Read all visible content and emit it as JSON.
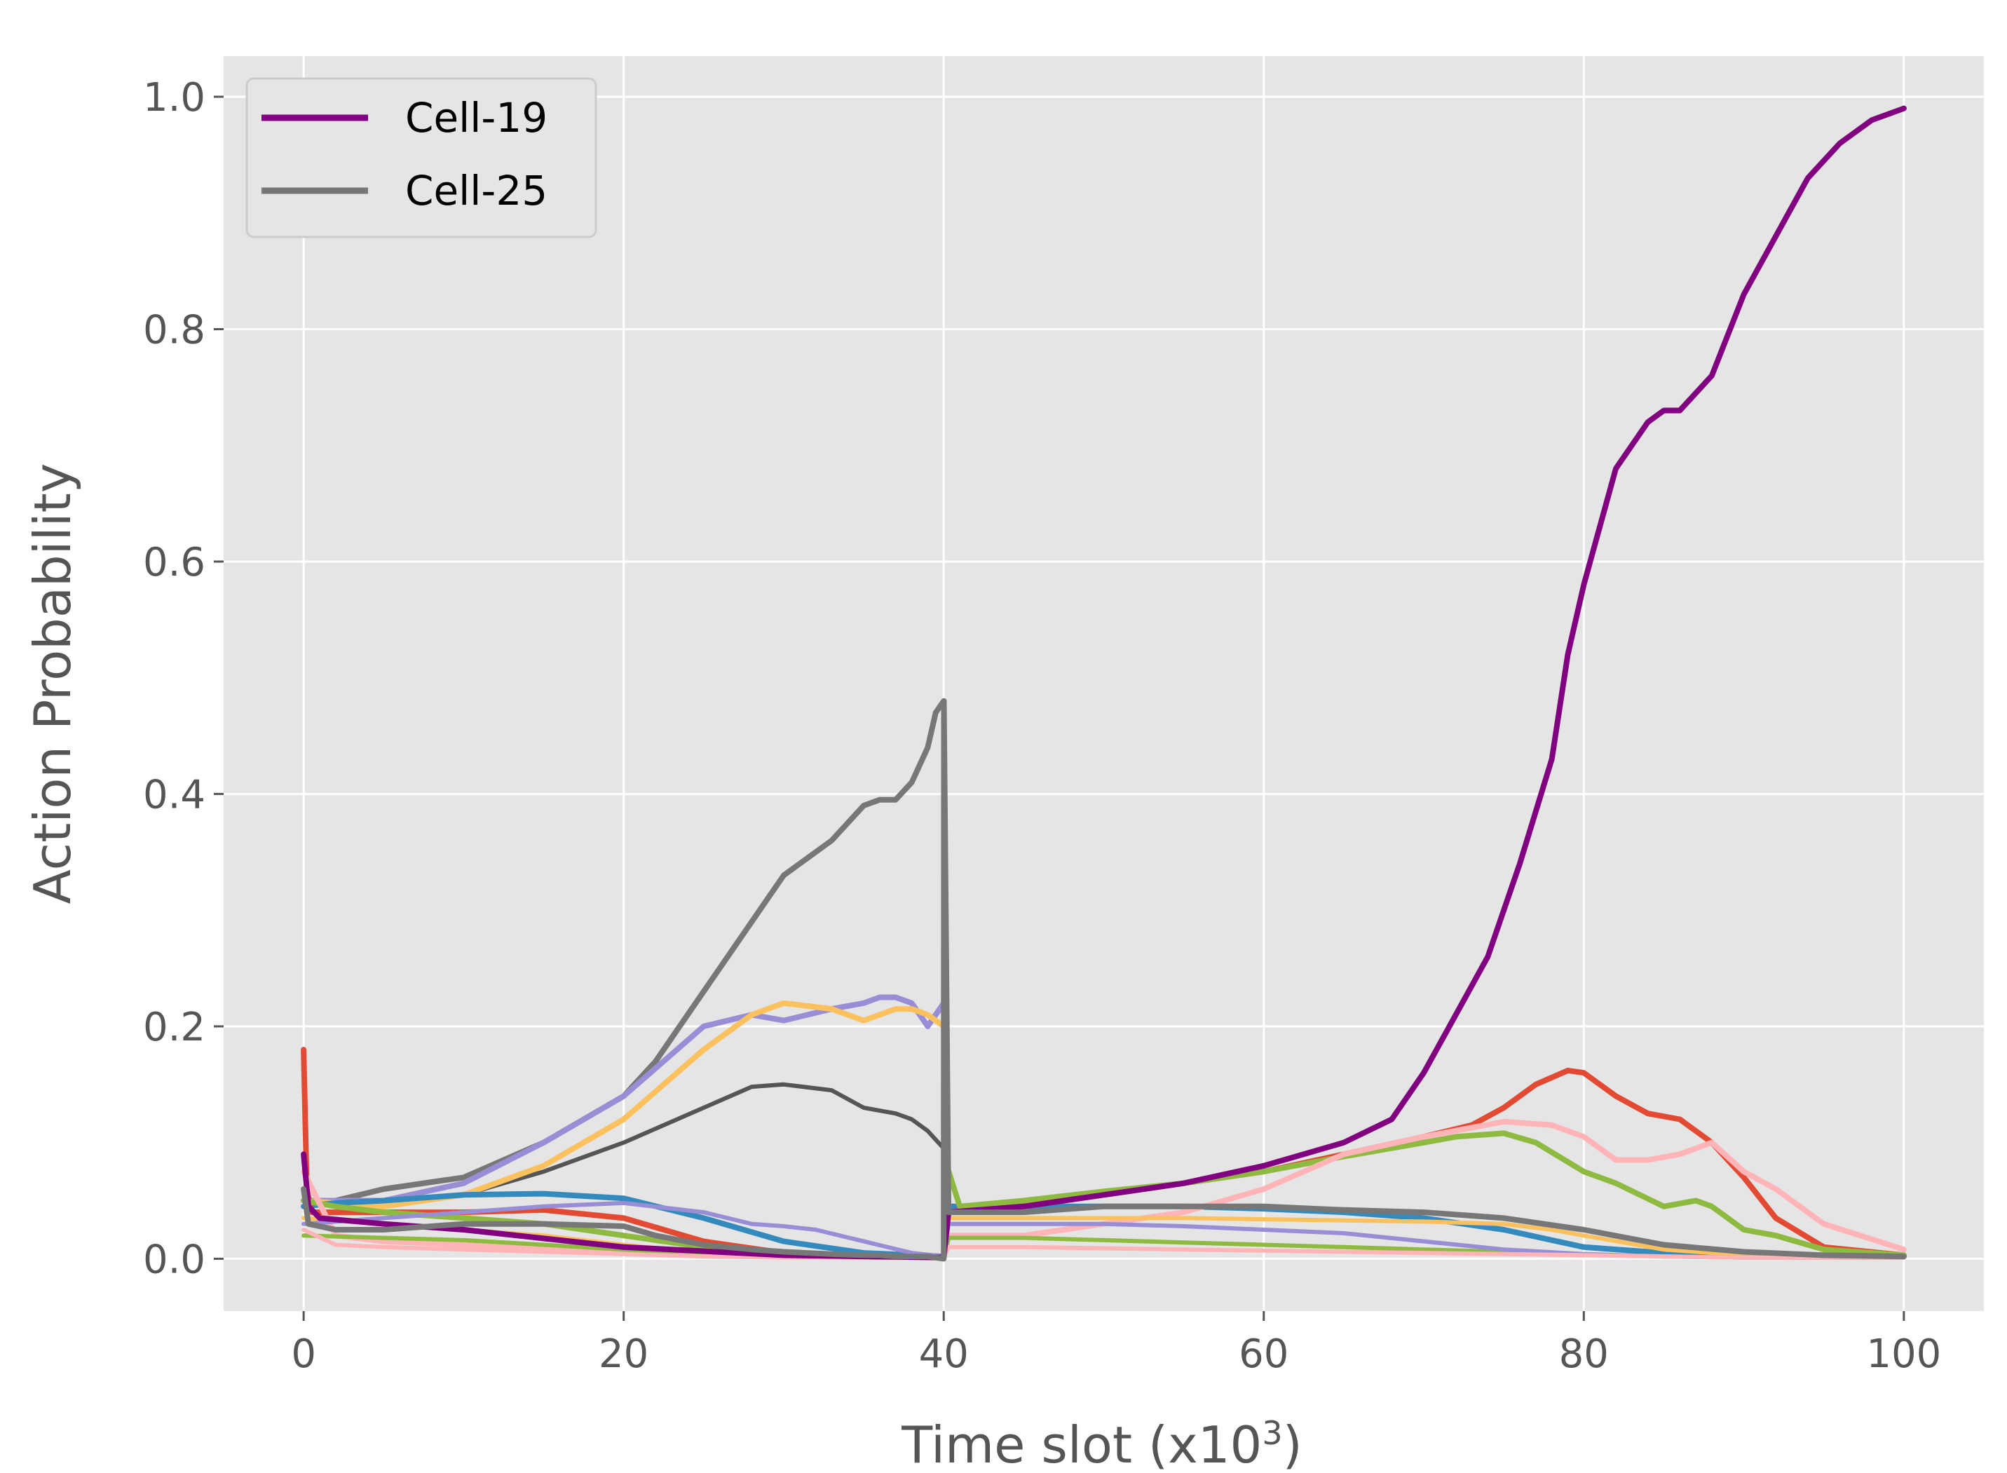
{
  "chart_data": {
    "type": "line",
    "xlabel": "Time slot (x10",
    "xlabel_sup": "3",
    "xlabel_end": ")",
    "ylabel": "Action Probability",
    "xlim": [
      -5,
      105
    ],
    "ylim": [
      -0.045,
      1.035
    ],
    "xticks": [
      0,
      20,
      40,
      60,
      80,
      100
    ],
    "yticks": [
      0.0,
      0.2,
      0.4,
      0.6,
      0.8,
      1.0
    ],
    "xtick_labels": [
      "0",
      "20",
      "40",
      "60",
      "80",
      "100"
    ],
    "ytick_labels": [
      "0.0",
      "0.2",
      "0.4",
      "0.6",
      "0.8",
      "1.0"
    ],
    "grid": true,
    "legend_position": "top-left",
    "background": "#e5e5e5",
    "grid_color": "#ffffff",
    "legend": [
      {
        "name": "Cell-19",
        "color": "#800080"
      },
      {
        "name": "Cell-25",
        "color": "#777777"
      }
    ],
    "series": [
      {
        "name": "Cell-19",
        "color": "#800080",
        "width": 8,
        "legend": true,
        "x": [
          0,
          0.3,
          1,
          5,
          10,
          20,
          30,
          40,
          40.3,
          45,
          50,
          55,
          60,
          65,
          68,
          70,
          72,
          74,
          76,
          78,
          79,
          80,
          82,
          84,
          85,
          86,
          88,
          90,
          92,
          94,
          96,
          98,
          100
        ],
        "y": [
          0.09,
          0.045,
          0.035,
          0.03,
          0.025,
          0.01,
          0.003,
          0.001,
          0.04,
          0.045,
          0.055,
          0.065,
          0.08,
          0.1,
          0.12,
          0.16,
          0.21,
          0.26,
          0.34,
          0.43,
          0.52,
          0.58,
          0.68,
          0.72,
          0.73,
          0.73,
          0.76,
          0.83,
          0.88,
          0.93,
          0.96,
          0.98,
          0.99
        ]
      },
      {
        "name": "Cell-25",
        "color": "#777777",
        "width": 8,
        "legend": true,
        "x": [
          0,
          0.3,
          2,
          5,
          10,
          15,
          20,
          22,
          25,
          28,
          30,
          33,
          35,
          36,
          37,
          38,
          39,
          40,
          40.01,
          40.3,
          45,
          50,
          55,
          60,
          65,
          70,
          75,
          80,
          85,
          90,
          95,
          100
        ],
        "y": [
          0.06,
          0.03,
          0.025,
          0.025,
          0.03,
          0.03,
          0.028,
          0.02,
          0.012,
          0.008,
          0.006,
          0.004,
          0.003,
          0.003,
          0.002,
          0.002,
          0.002,
          0.0,
          0.48,
          0.04,
          0.04,
          0.045,
          0.045,
          0.045,
          0.042,
          0.04,
          0.035,
          0.025,
          0.012,
          0.006,
          0.003,
          0.002
        ]
      },
      {
        "name": "",
        "color": "#777777",
        "width": 8,
        "legend": false,
        "x": [
          0,
          2,
          5,
          10,
          15,
          20,
          22,
          25,
          28,
          30,
          33,
          35,
          36,
          37,
          38,
          39,
          39.5,
          40
        ],
        "y": [
          0.05,
          0.05,
          0.06,
          0.07,
          0.1,
          0.14,
          0.17,
          0.23,
          0.29,
          0.33,
          0.36,
          0.39,
          0.395,
          0.395,
          0.41,
          0.44,
          0.47,
          0.48
        ]
      },
      {
        "name": "",
        "color": "#555555",
        "width": 6,
        "legend": false,
        "x": [
          0,
          5,
          10,
          15,
          20,
          25,
          28,
          30,
          33,
          35,
          37,
          38,
          39,
          40
        ],
        "y": [
          0.045,
          0.05,
          0.055,
          0.075,
          0.1,
          0.13,
          0.148,
          0.15,
          0.145,
          0.13,
          0.125,
          0.12,
          0.11,
          0.095
        ]
      },
      {
        "name": "",
        "color": "#988ED5",
        "width": 8,
        "legend": false,
        "x": [
          0,
          5,
          10,
          15,
          20,
          25,
          28,
          30,
          33,
          35,
          36,
          37,
          38,
          39,
          40
        ],
        "y": [
          0.05,
          0.05,
          0.065,
          0.1,
          0.14,
          0.2,
          0.21,
          0.205,
          0.215,
          0.22,
          0.225,
          0.225,
          0.22,
          0.2,
          0.22
        ]
      },
      {
        "name": "",
        "color": "#FBC15E",
        "width": 8,
        "legend": false,
        "x": [
          0,
          5,
          10,
          15,
          20,
          25,
          28,
          30,
          33,
          35,
          37,
          38,
          39,
          40
        ],
        "y": [
          0.05,
          0.045,
          0.055,
          0.08,
          0.12,
          0.18,
          0.21,
          0.22,
          0.215,
          0.205,
          0.215,
          0.215,
          0.21,
          0.2
        ]
      },
      {
        "name": "",
        "color": "#348ABD",
        "width": 8,
        "legend": false,
        "x": [
          0,
          2,
          5,
          10,
          15,
          20,
          25,
          30,
          35,
          40,
          40.3,
          45,
          50,
          55,
          60,
          65,
          70,
          75,
          80,
          85,
          90,
          95,
          100
        ],
        "y": [
          0.045,
          0.048,
          0.05,
          0.055,
          0.056,
          0.052,
          0.035,
          0.015,
          0.005,
          0.002,
          0.045,
          0.045,
          0.045,
          0.045,
          0.043,
          0.04,
          0.035,
          0.025,
          0.01,
          0.005,
          0.003,
          0.002,
          0.002
        ]
      },
      {
        "name": "",
        "color": "#E24A33",
        "width": 8,
        "legend": false,
        "x": [
          0,
          0.2,
          0.5,
          2,
          5,
          10,
          15,
          20,
          25,
          30,
          35,
          40,
          40.3,
          45,
          50,
          55,
          60,
          65,
          70,
          73,
          75,
          77,
          79,
          80,
          82,
          84,
          86,
          88,
          90,
          92,
          95,
          100
        ],
        "y": [
          0.18,
          0.06,
          0.04,
          0.04,
          0.04,
          0.04,
          0.042,
          0.035,
          0.015,
          0.005,
          0.002,
          0.001,
          0.04,
          0.045,
          0.055,
          0.065,
          0.075,
          0.09,
          0.105,
          0.115,
          0.13,
          0.15,
          0.162,
          0.16,
          0.14,
          0.125,
          0.12,
          0.1,
          0.07,
          0.035,
          0.01,
          0.003
        ]
      },
      {
        "name": "",
        "color": "#8EBA42",
        "width": 8,
        "legend": false,
        "x": [
          0,
          2,
          5,
          10,
          15,
          20,
          25,
          30,
          35,
          40,
          40.2,
          41,
          45,
          50,
          55,
          60,
          65,
          70,
          72,
          75,
          77,
          80,
          82,
          85,
          87,
          88,
          90,
          92,
          95,
          100
        ],
        "y": [
          0.05,
          0.045,
          0.04,
          0.035,
          0.03,
          0.02,
          0.01,
          0.004,
          0.002,
          0.001,
          0.08,
          0.045,
          0.05,
          0.058,
          0.065,
          0.075,
          0.088,
          0.1,
          0.105,
          0.108,
          0.1,
          0.075,
          0.065,
          0.045,
          0.05,
          0.045,
          0.025,
          0.02,
          0.008,
          0.003
        ]
      },
      {
        "name": "",
        "color": "#FFB5B8",
        "width": 8,
        "legend": false,
        "x": [
          0,
          2,
          5,
          10,
          20,
          30,
          40,
          40.3,
          45,
          50,
          55,
          60,
          65,
          70,
          75,
          78,
          80,
          82,
          84,
          86,
          88,
          90,
          92,
          95,
          100
        ],
        "y": [
          0.075,
          0.02,
          0.015,
          0.012,
          0.005,
          0.002,
          0.001,
          0.02,
          0.02,
          0.03,
          0.04,
          0.06,
          0.09,
          0.105,
          0.118,
          0.115,
          0.105,
          0.085,
          0.085,
          0.09,
          0.1,
          0.075,
          0.06,
          0.03,
          0.008
        ]
      },
      {
        "name": "",
        "color": "#FBC15E",
        "width": 6,
        "legend": false,
        "x": [
          0,
          5,
          10,
          15,
          20,
          25,
          30,
          35,
          40,
          40.3,
          45,
          50,
          55,
          60,
          65,
          70,
          75,
          78,
          80,
          85,
          90,
          95,
          100
        ],
        "y": [
          0.035,
          0.03,
          0.025,
          0.02,
          0.012,
          0.005,
          0.002,
          0.001,
          0.001,
          0.035,
          0.035,
          0.035,
          0.035,
          0.034,
          0.033,
          0.032,
          0.03,
          0.025,
          0.02,
          0.008,
          0.003,
          0.002,
          0.001
        ]
      },
      {
        "name": "",
        "color": "#8EBA42",
        "width": 6,
        "legend": false,
        "x": [
          0,
          5,
          10,
          15,
          20,
          25,
          30,
          35,
          40,
          40.3,
          45,
          50,
          55,
          60,
          65,
          70,
          75,
          80,
          85,
          90,
          95,
          100
        ],
        "y": [
          0.02,
          0.018,
          0.016,
          0.012,
          0.008,
          0.004,
          0.002,
          0.001,
          0.001,
          0.018,
          0.018,
          0.016,
          0.014,
          0.012,
          0.01,
          0.008,
          0.006,
          0.004,
          0.002,
          0.001,
          0.001,
          0.001
        ]
      },
      {
        "name": "",
        "color": "#988ED5",
        "width": 6,
        "legend": false,
        "x": [
          0,
          5,
          10,
          15,
          20,
          25,
          28,
          30,
          32,
          35,
          38,
          40,
          40.3,
          45,
          50,
          55,
          60,
          65,
          70,
          75,
          80,
          85,
          90,
          100
        ],
        "y": [
          0.03,
          0.035,
          0.04,
          0.045,
          0.048,
          0.04,
          0.03,
          0.028,
          0.025,
          0.015,
          0.005,
          0.002,
          0.03,
          0.03,
          0.03,
          0.028,
          0.025,
          0.022,
          0.015,
          0.008,
          0.004,
          0.002,
          0.001,
          0.001
        ]
      },
      {
        "name": "",
        "color": "#FFB5B8",
        "width": 6,
        "legend": false,
        "x": [
          0,
          2,
          5,
          10,
          15,
          20,
          25,
          30,
          35,
          40,
          40.3,
          45,
          50,
          55,
          60,
          65,
          70,
          75,
          80,
          85,
          90,
          95,
          100
        ],
        "y": [
          0.025,
          0.012,
          0.01,
          0.008,
          0.006,
          0.004,
          0.002,
          0.001,
          0.001,
          0.001,
          0.01,
          0.01,
          0.009,
          0.008,
          0.007,
          0.006,
          0.005,
          0.004,
          0.003,
          0.002,
          0.001,
          0.001,
          0.001
        ]
      }
    ]
  }
}
